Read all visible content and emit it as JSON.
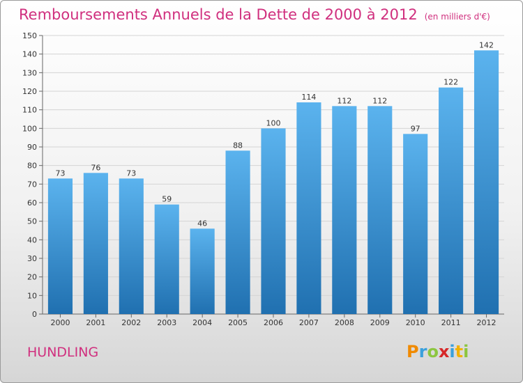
{
  "header": {
    "title": "Remboursements Annuels de la Dette de 2000 à 2012",
    "unit": "(en milliers d'€)"
  },
  "footer": {
    "commune": "HUNDLING",
    "logo": {
      "letters": [
        "P",
        "r",
        "o",
        "x",
        "i",
        "t",
        "i"
      ],
      "colors": [
        "#f08a00",
        "#3aa0dc",
        "#8cc63f",
        "#d62728",
        "#3aa0dc",
        "#f2b100",
        "#8cc63f"
      ]
    }
  },
  "colors": {
    "bar_top": "#5bb3ee",
    "bar_bottom": "#2070b0",
    "title": "#d02f7e"
  },
  "chart_data": {
    "type": "bar",
    "title": "Remboursements Annuels de la Dette de 2000 à 2012",
    "ylabel": "",
    "xlabel": "",
    "ylim": [
      0,
      150
    ],
    "yticks": [
      0,
      10,
      20,
      30,
      40,
      50,
      60,
      70,
      80,
      90,
      100,
      110,
      120,
      130,
      140,
      150
    ],
    "grid": true,
    "categories": [
      "2000",
      "2001",
      "2002",
      "2003",
      "2004",
      "2005",
      "2006",
      "2007",
      "2008",
      "2009",
      "2010",
      "2011",
      "2012"
    ],
    "values": [
      73,
      76,
      73,
      59,
      46,
      88,
      100,
      114,
      112,
      112,
      97,
      122,
      142
    ]
  }
}
